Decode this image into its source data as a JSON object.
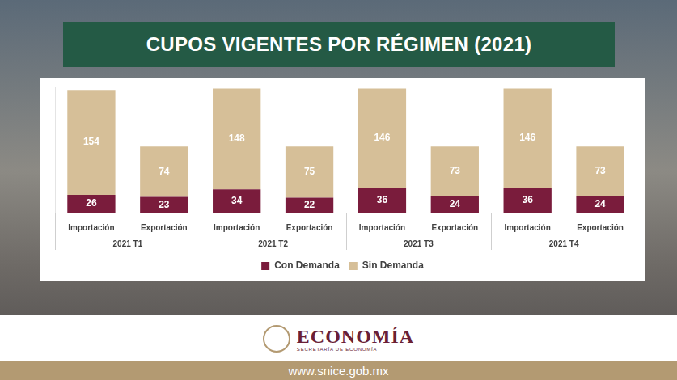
{
  "chart_data": {
    "type": "bar",
    "title": "CUPOS VIGENTES POR RÉGIMEN (2021)",
    "categories": [
      "Importación",
      "Exportación",
      "Importación",
      "Exportación",
      "Importación",
      "Exportación",
      "Importación",
      "Exportación"
    ],
    "groups": [
      "2021 T1",
      "2021 T2",
      "2021 T3",
      "2021 T4"
    ],
    "series": [
      {
        "name": "Con Demanda",
        "color": "#7a1c3c",
        "values": [
          26,
          23,
          34,
          22,
          36,
          24,
          36,
          24
        ]
      },
      {
        "name": "Sin Demanda",
        "color": "#d6bf98",
        "values": [
          154,
          74,
          148,
          75,
          146,
          73,
          146,
          73
        ]
      }
    ],
    "ylim": [
      0,
      185
    ],
    "stacked": true,
    "data_labels": true,
    "legend": "bottom",
    "grid": false,
    "tick_labels": "x"
  },
  "footer": {
    "logo": "ECONOMÍA",
    "logo_subtitle": "SECRETARÍA DE ECONOMÍA",
    "url": "www.snice.gob.mx"
  }
}
